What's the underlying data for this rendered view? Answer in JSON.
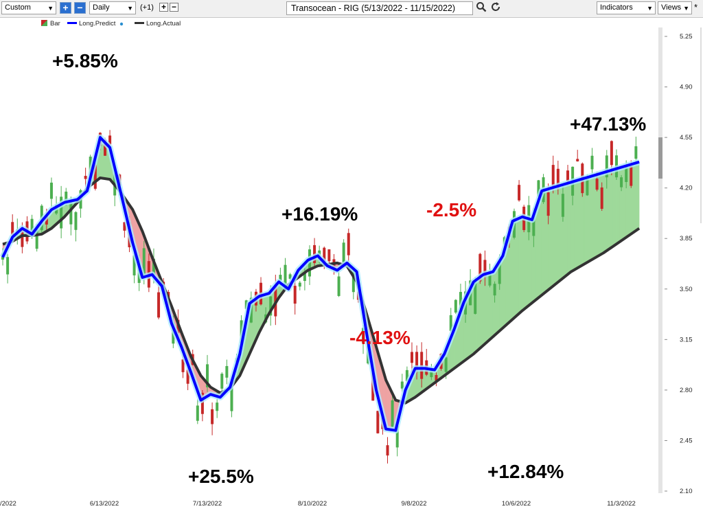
{
  "toolbar": {
    "layout_select": "Custom",
    "period_select": "Daily",
    "offset": "(+1)",
    "title": "Transocean - RIG (5/13/2022 - 11/15/2022)",
    "indicators_select": "Indicators",
    "views_select": "Views",
    "views_asterisk": "*"
  },
  "icons": {
    "zoom_in": "plus-icon",
    "zoom_out": "minus-icon",
    "search": "search-icon",
    "refresh": "refresh-icon"
  },
  "colors": {
    "up_bar": "#4caf50",
    "down_bar": "#c62828",
    "predict": "#0000ff",
    "actual": "#333333",
    "fill_up": "#9ed99a",
    "fill_down": "#eea3a3",
    "ann_pos": "#000000",
    "ann_neg": "#e01010"
  },
  "chart_data": {
    "type": "line",
    "legend": [
      {
        "name": "Bar"
      },
      {
        "name": "Long.Predict"
      },
      {
        "name": "Long.Actual"
      }
    ],
    "legend_placement": "top-left",
    "x_ticks": [
      "/2022",
      "6/13/2022",
      "7/13/2022",
      "8/10/2022",
      "9/8/2022",
      "10/6/2022",
      "11/3/2022"
    ],
    "y_ticks": [
      5.25,
      4.9,
      4.55,
      4.2,
      3.85,
      3.5,
      3.15,
      2.8,
      2.45,
      2.1
    ],
    "y_tick_labels": [
      "5.25",
      "4.90",
      "4.55",
      "4.20",
      "3.85",
      "3.50",
      "3.15",
      "2.80",
      "2.45",
      "2.10"
    ],
    "ylim": [
      2.1,
      5.32
    ],
    "grid": false,
    "series": [
      {
        "name": "Long.Predict",
        "x": [
          0,
          3,
          6,
          9,
          12,
          15,
          19,
          23,
          26,
          30,
          33,
          36,
          40,
          43,
          46,
          49,
          52,
          55,
          58,
          61,
          64,
          67,
          70,
          73,
          76,
          79,
          82,
          85,
          88,
          91,
          94,
          97,
          100,
          103,
          106,
          109,
          112,
          115,
          118,
          121,
          124,
          127,
          130
        ],
        "values": [
          3.72,
          3.86,
          3.92,
          3.88,
          3.97,
          4.05,
          4.1,
          4.12,
          4.18,
          4.55,
          4.48,
          4.2,
          3.82,
          3.58,
          3.6,
          3.52,
          3.26,
          3.1,
          2.92,
          2.73,
          2.77,
          2.75,
          2.82,
          3.05,
          3.4,
          3.45,
          3.47,
          3.55,
          3.5,
          3.63,
          3.7,
          3.73,
          3.66,
          3.63,
          3.68,
          3.62,
          3.2,
          2.8,
          2.53,
          2.52,
          2.8,
          2.95,
          2.95
        ],
        "x_cont": [
          130,
          133,
          136,
          139,
          142,
          145,
          148,
          151,
          154,
          157,
          160,
          163,
          166,
          169,
          172,
          175,
          178,
          181,
          184,
          187,
          190,
          193,
          196
        ],
        "values_cont": [
          2.95,
          2.94,
          3.05,
          3.22,
          3.41,
          3.55,
          3.6,
          3.62,
          3.73,
          3.97,
          4.0,
          3.98,
          4.18,
          4.2,
          4.22,
          4.24,
          4.26,
          4.28,
          4.3,
          4.32,
          4.34,
          4.36,
          4.38
        ]
      },
      {
        "name": "Long.Actual",
        "values": [
          3.81,
          3.83,
          3.87,
          3.87,
          3.88,
          3.92,
          4.0,
          4.1,
          4.2,
          4.27,
          4.26,
          4.18,
          4.05,
          3.9,
          3.72,
          3.55,
          3.38,
          3.2,
          3.03,
          2.9,
          2.82,
          2.78,
          2.81,
          2.9,
          3.05,
          3.2,
          3.33,
          3.44,
          3.53,
          3.58,
          3.63,
          3.66,
          3.67,
          3.68,
          3.66,
          3.55,
          3.33,
          3.1,
          2.87,
          2.73,
          2.71,
          2.75,
          2.8
        ]
      }
    ],
    "annotations": [
      {
        "text": "+5.85%",
        "sign": "pos"
      },
      {
        "text": "+25.5%",
        "sign": "pos"
      },
      {
        "text": "+16.19%",
        "sign": "pos"
      },
      {
        "text": "-2.5%",
        "sign": "neg"
      },
      {
        "text": "-4.13%",
        "sign": "neg"
      },
      {
        "text": "+12.84%",
        "sign": "pos"
      },
      {
        "text": "+47.13%",
        "sign": "pos"
      }
    ]
  }
}
